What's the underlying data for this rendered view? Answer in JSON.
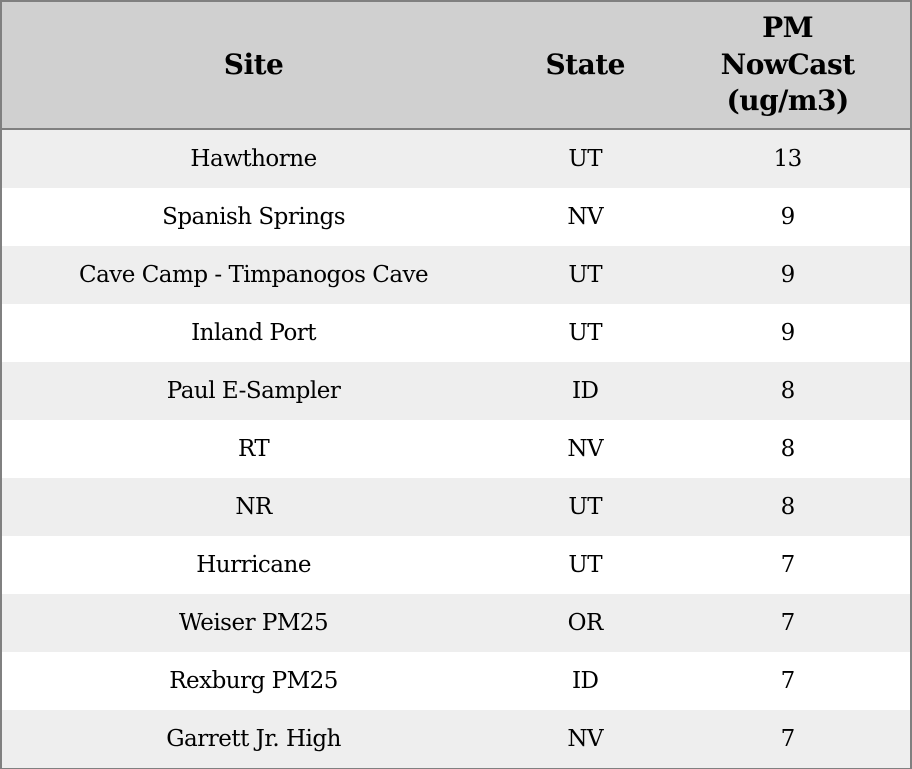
{
  "chart_data": {
    "type": "table",
    "columns": [
      "Site",
      "State",
      "PM NowCast (ug/m3)"
    ],
    "rows": [
      {
        "site": "Hawthorne",
        "state": "UT",
        "pm": 13
      },
      {
        "site": "Spanish Springs",
        "state": "NV",
        "pm": 9
      },
      {
        "site": "Cave Camp - Timpanogos Cave",
        "state": "UT",
        "pm": 9
      },
      {
        "site": "Inland Port",
        "state": "UT",
        "pm": 9
      },
      {
        "site": "Paul E-Sampler",
        "state": "ID",
        "pm": 8
      },
      {
        "site": "RT",
        "state": "NV",
        "pm": 8
      },
      {
        "site": "NR",
        "state": "UT",
        "pm": 8
      },
      {
        "site": "Hurricane",
        "state": "UT",
        "pm": 7
      },
      {
        "site": "Weiser PM25",
        "state": "OR",
        "pm": 7
      },
      {
        "site": "Rexburg PM25",
        "state": "ID",
        "pm": 7
      },
      {
        "site": "Garrett Jr. High",
        "state": "NV",
        "pm": 7
      }
    ]
  },
  "header_display": {
    "site": "Site",
    "state": "State",
    "pm_multiline": "PM\nNowCast\n(ug/m3)"
  },
  "colors": {
    "header_bg": "#d0d0d0",
    "row_alt_bg": "#eeeeee",
    "row_bg": "#ffffff",
    "border": "#808080",
    "text": "#000000"
  }
}
